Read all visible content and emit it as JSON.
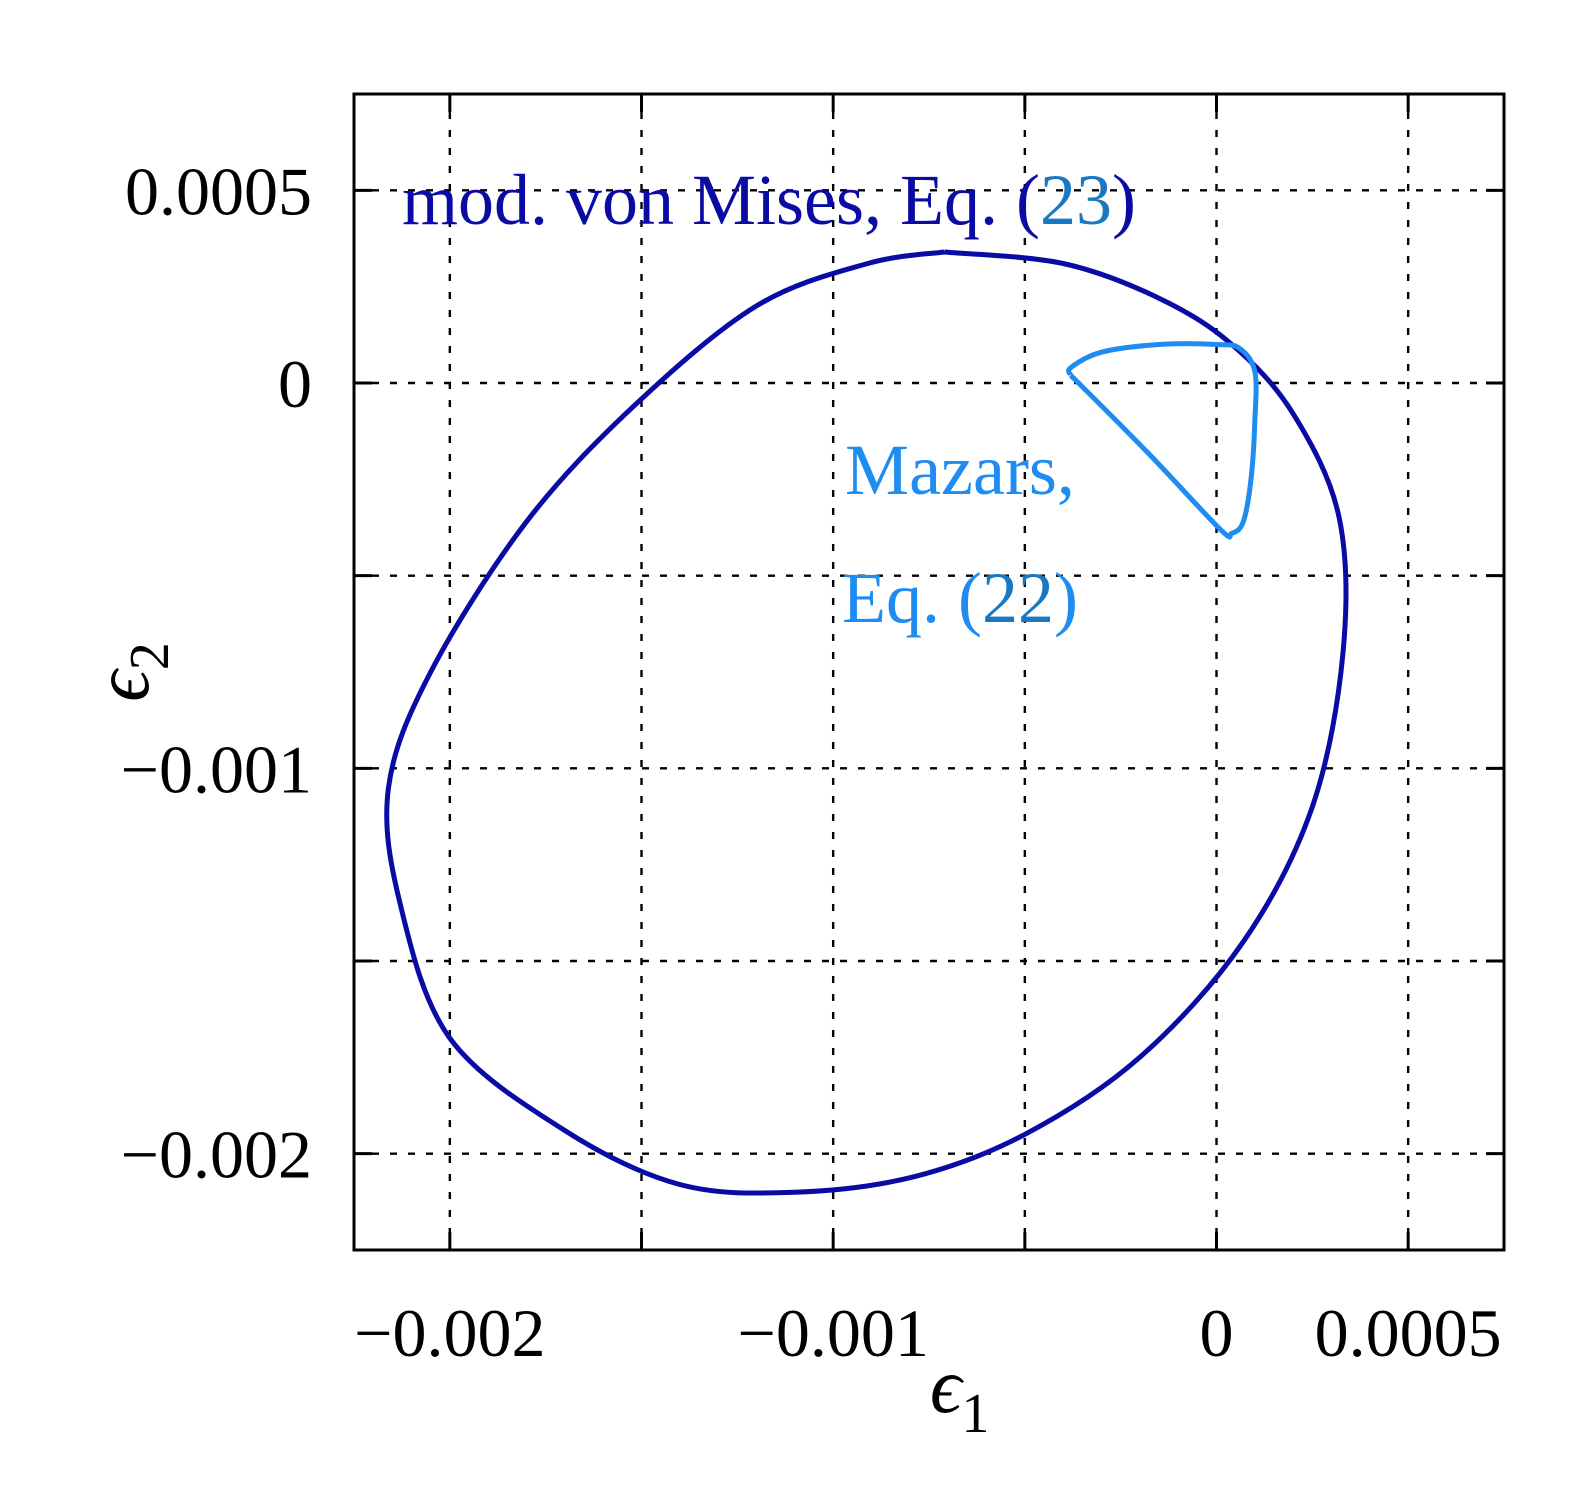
{
  "chart_data": {
    "type": "line",
    "title": "",
    "xlabel": {
      "symbol": "ϵ",
      "subscript": "1"
    },
    "ylabel": {
      "symbol": "ϵ",
      "subscript": "2"
    },
    "xlim": [
      -0.00225,
      0.00075
    ],
    "ylim": [
      -0.00225,
      0.00075
    ],
    "grid": true,
    "x_ticks": [
      -0.002,
      -0.0015,
      -0.001,
      -0.0005,
      0,
      0.0005
    ],
    "y_ticks": [
      -0.002,
      -0.0015,
      -0.001,
      -0.0005,
      0,
      0.0005
    ],
    "x_tick_labels": [
      {
        "value": -0.002,
        "label": "−0.002"
      },
      {
        "value": -0.001,
        "label": "−0.001"
      },
      {
        "value": 0,
        "label": "0"
      },
      {
        "value": 0.0005,
        "label": "0.0005"
      }
    ],
    "y_tick_labels": [
      {
        "value": 0.0005,
        "label": "0.0005"
      },
      {
        "value": 0,
        "label": "0"
      },
      {
        "value": -0.001,
        "label": "−0.001"
      },
      {
        "value": -0.002,
        "label": "−0.002"
      }
    ],
    "series": [
      {
        "name": "mod. von Mises, Eq. (23)",
        "color": "#0a0aa5",
        "points": [
          [
            -0.00071,
            0.00034
          ],
          [
            -0.00091,
            0.00031
          ],
          [
            -0.0012,
            0.0002
          ],
          [
            -0.00152,
            -6e-05
          ],
          [
            -0.0018,
            -0.00036
          ],
          [
            -0.00205,
            -0.00075
          ],
          [
            -0.00216,
            -0.00105
          ],
          [
            -0.00213,
            -0.00135
          ],
          [
            -0.002,
            -0.0017
          ],
          [
            -0.0017,
            -0.00194
          ],
          [
            -0.0014,
            -0.00208
          ],
          [
            -0.0011,
            -0.0021
          ],
          [
            -0.00079,
            -0.00206
          ],
          [
            -0.0005,
            -0.00195
          ],
          [
            -0.0002,
            -0.00175
          ],
          [
            7e-05,
            -0.00145
          ],
          [
            0.00025,
            -0.0011
          ],
          [
            0.00033,
            -0.0007
          ],
          [
            0.00032,
            -0.00035
          ],
          [
            0.0002,
            -8e-05
          ],
          [
            4e-05,
            0.0001
          ],
          [
            -0.00015,
            0.00022
          ],
          [
            -0.0004,
            0.00031
          ],
          [
            -0.00071,
            0.00034
          ]
        ]
      },
      {
        "name": "Mazars, Eq. (22)",
        "color": "#1e8cf0",
        "points": [
          [
            -0.00038,
            2e-05
          ],
          [
            -0.00038,
            4e-05
          ],
          [
            -0.0003,
            8e-05
          ],
          [
            -0.00015,
            0.0001
          ],
          [
            0.0,
            0.0001
          ],
          [
            6e-05,
            9e-05
          ],
          [
            0.0001,
            3e-05
          ],
          [
            0.0001,
            -0.0001
          ],
          [
            9e-05,
            -0.00025
          ],
          [
            7e-05,
            -0.00036
          ],
          [
            4e-05,
            -0.00039
          ],
          [
            1e-05,
            -0.00038
          ],
          [
            -0.00018,
            -0.00018
          ],
          [
            -0.00038,
            2e-05
          ]
        ]
      }
    ],
    "annotations": [
      {
        "text_main": "mod. von Mises, Eq. (",
        "text_ref": "23",
        "text_end": ")",
        "color": "#0a0aa5",
        "ref_color": "#1a78c0"
      },
      {
        "line1": "Mazars,",
        "line2_main": "Eq. (",
        "line2_ref": "22",
        "line2_end": ")",
        "color": "#1e8cf0",
        "ref_color": "#1a78c0"
      }
    ]
  }
}
